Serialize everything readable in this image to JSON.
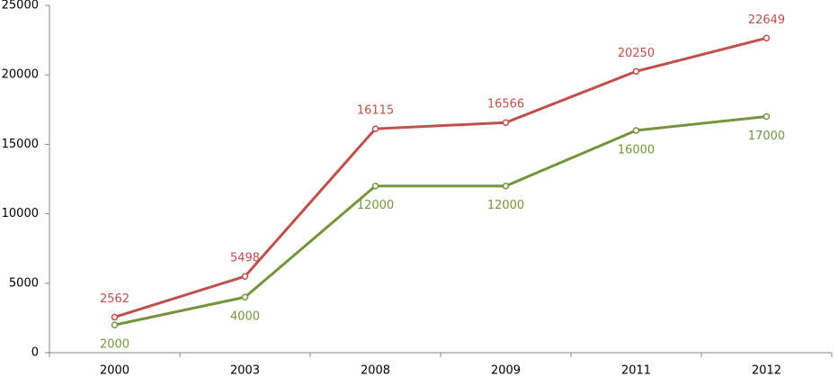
{
  "chart_data": {
    "type": "line",
    "categories": [
      "2000",
      "2003",
      "2008",
      "2009",
      "2011",
      "2012"
    ],
    "series": [
      {
        "color": "#c0504d",
        "values": [
          2562,
          5498,
          16115,
          16566,
          20250,
          22649
        ]
      },
      {
        "color": "#77933c",
        "values": [
          2000,
          4000,
          12000,
          12000,
          16000,
          17000
        ]
      }
    ],
    "ylim": [
      0,
      25000
    ],
    "yticks": [
      0,
      5000,
      10000,
      15000,
      20000,
      25000
    ],
    "grid": false
  }
}
